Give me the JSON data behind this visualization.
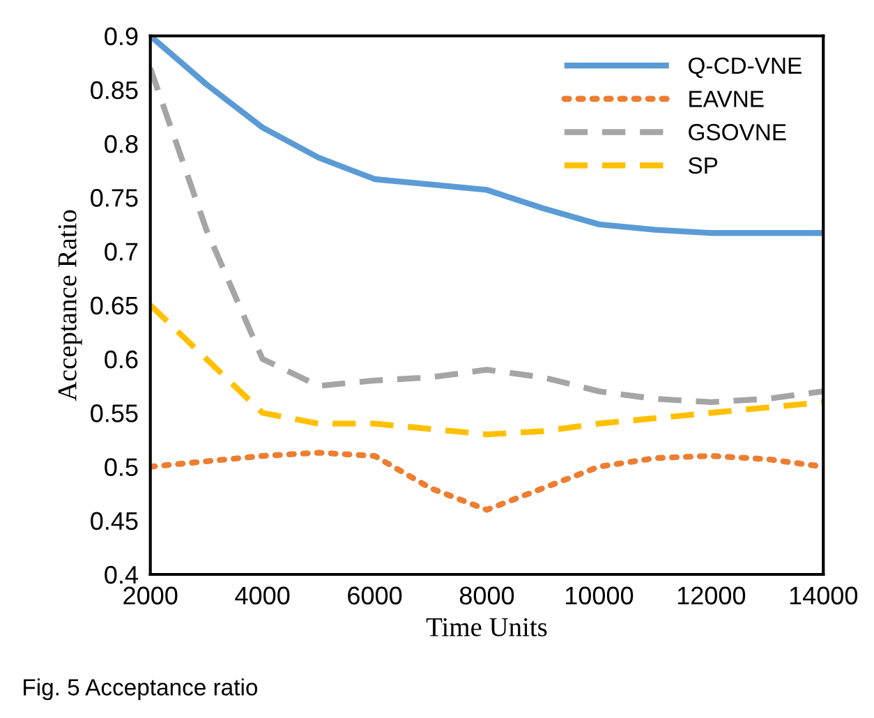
{
  "chart_data": {
    "type": "line",
    "xlabel": "Time Units",
    "ylabel": "Acceptance Ratio",
    "x": [
      2000,
      3000,
      4000,
      5000,
      6000,
      7000,
      8000,
      9000,
      10000,
      11000,
      12000,
      13000,
      14000
    ],
    "series": [
      {
        "name": "Q-CD-VNE",
        "color": "#5b9bd5",
        "line_style": "solid",
        "values": [
          0.9,
          0.855,
          0.815,
          0.787,
          0.767,
          0.762,
          0.757,
          0.74,
          0.725,
          0.72,
          0.717,
          0.717,
          0.717
        ]
      },
      {
        "name": "EAVNE",
        "color": "#ed7d31",
        "line_style": "dotted",
        "values": [
          0.5,
          0.505,
          0.51,
          0.513,
          0.51,
          0.48,
          0.46,
          0.48,
          0.5,
          0.508,
          0.51,
          0.507,
          0.5
        ]
      },
      {
        "name": "GSOVNE",
        "color": "#a5a5a5",
        "line_style": "dashed",
        "values": [
          0.87,
          0.72,
          0.6,
          0.575,
          0.58,
          0.583,
          0.59,
          0.583,
          0.57,
          0.563,
          0.56,
          0.563,
          0.57
        ]
      },
      {
        "name": "SP",
        "color": "#ffc000",
        "line_style": "dashed",
        "values": [
          0.65,
          0.6,
          0.55,
          0.54,
          0.54,
          0.535,
          0.53,
          0.533,
          0.54,
          0.545,
          0.55,
          0.555,
          0.56
        ]
      }
    ],
    "xlim": [
      2000,
      14000
    ],
    "xticks": [
      2000,
      4000,
      6000,
      8000,
      10000,
      12000,
      14000
    ],
    "ylim": [
      0.4,
      0.9
    ],
    "yticks": [
      {
        "value": 0.4,
        "label": "0.4"
      },
      {
        "value": 0.45,
        "label": "0.45"
      },
      {
        "value": 0.5,
        "label": "0.5"
      },
      {
        "value": 0.55,
        "label": "0.55"
      },
      {
        "value": 0.6,
        "label": "0.6"
      },
      {
        "value": 0.65,
        "label": "0.65"
      },
      {
        "value": 0.7,
        "label": "0.7"
      },
      {
        "value": 0.75,
        "label": "0.75"
      },
      {
        "value": 0.8,
        "label": "0.8"
      },
      {
        "value": 0.85,
        "label": "0.85"
      },
      {
        "value": 0.9,
        "label": "0.9"
      }
    ],
    "grid": false,
    "legend": "top right",
    "marker": "none",
    "annotations": [
      "Fig. 5 Acceptance ratio"
    ]
  }
}
